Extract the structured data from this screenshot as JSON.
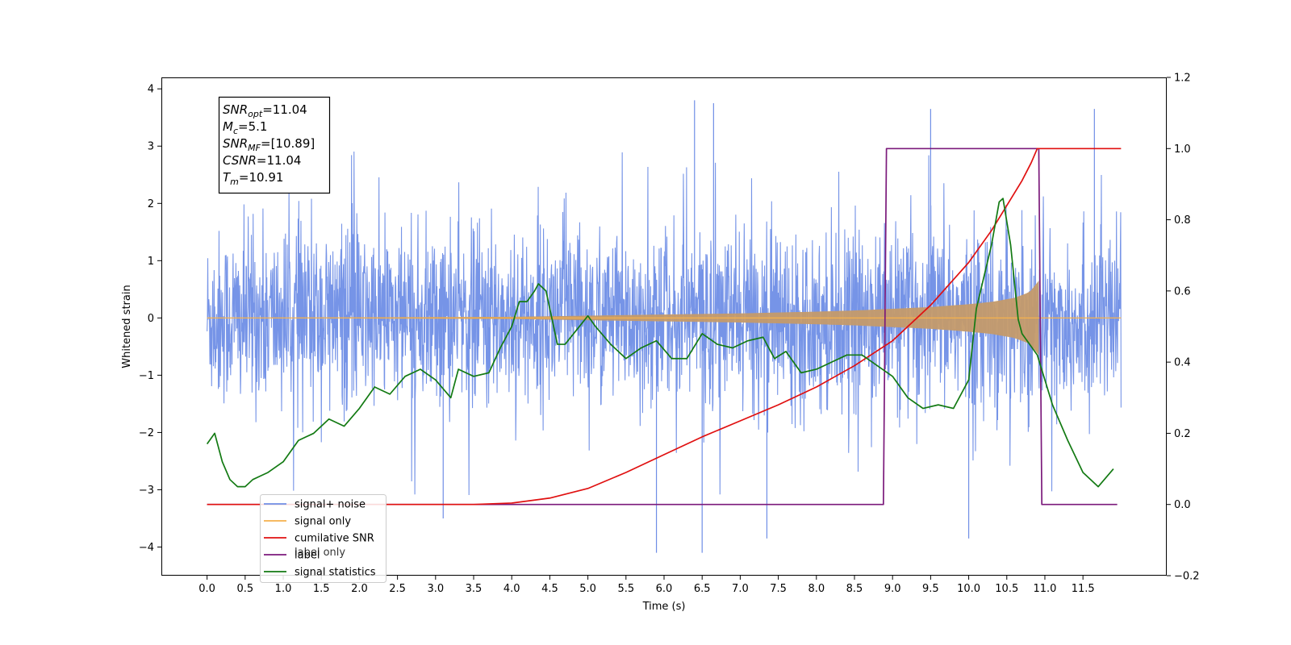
{
  "chart_data": {
    "type": "line",
    "xlabel": "Time (s)",
    "ylabel": "Whitened strain",
    "xlim": [
      -0.6,
      12.6
    ],
    "ylim": [
      -4.5,
      4.2
    ],
    "y2lim": [
      -0.2,
      1.2
    ],
    "x_ticks": [
      0.0,
      0.5,
      1.0,
      1.5,
      2.0,
      2.5,
      3.0,
      3.5,
      4.0,
      4.5,
      5.0,
      5.5,
      6.0,
      6.5,
      7.0,
      7.5,
      8.0,
      8.5,
      9.0,
      9.5,
      10.0,
      10.5,
      11.0,
      11.5
    ],
    "x_tick_labels": [
      "0.0",
      "0.5",
      "1.0",
      "1.5",
      "2.0",
      "2.5",
      "3.0",
      "3.5",
      "4.0",
      "4.5",
      "5.0",
      "5.5",
      "6.0",
      "6.5",
      "7.0",
      "7.5",
      "8.0",
      "8.5",
      "9.0",
      "9.5",
      "10.0",
      "10.5",
      "11.0",
      "11.5"
    ],
    "y_ticks": [
      -4,
      -3,
      -2,
      -1,
      0,
      1,
      2,
      3,
      4
    ],
    "y_tick_labels": [
      "−4",
      "−3",
      "−2",
      "−1",
      "0",
      "1",
      "2",
      "3",
      "4"
    ],
    "y2_ticks": [
      -0.2,
      0.0,
      0.2,
      0.4,
      0.6,
      0.8,
      1.0,
      1.2
    ],
    "y2_tick_labels": [
      "−0.2",
      "0.0",
      "0.2",
      "0.4",
      "0.6",
      "0.8",
      "1.0",
      "1.2"
    ],
    "colors": {
      "noise": "#6f8ee6",
      "signal": "#f5b14c",
      "signal_band": "#c49a6a",
      "csnr": "#e01010",
      "label": "#7b1a7b",
      "stat": "#137a13"
    },
    "noise": {
      "start": 0.0,
      "end": 12.0,
      "sigma": 0.75,
      "outliers": [
        [
          5.9,
          -4.1
        ],
        [
          6.5,
          -4.1
        ],
        [
          10.0,
          -3.85
        ],
        [
          7.35,
          -3.85
        ],
        [
          3.1,
          -3.5
        ],
        [
          6.4,
          3.8
        ],
        [
          6.65,
          3.75
        ],
        [
          11.65,
          3.65
        ],
        [
          9.5,
          3.65
        ]
      ]
    },
    "signal_envelope": {
      "x": [
        0.0,
        2.0,
        4.0,
        5.0,
        6.0,
        7.0,
        8.0,
        8.5,
        9.0,
        9.5,
        10.0,
        10.3,
        10.6,
        10.8,
        10.92
      ],
      "y": [
        0.0,
        0.01,
        0.02,
        0.04,
        0.06,
        0.08,
        0.11,
        0.13,
        0.16,
        0.19,
        0.24,
        0.28,
        0.35,
        0.45,
        0.65
      ]
    },
    "series": [
      {
        "name": "cumilative SNR",
        "axis": "right",
        "x": [
          0.0,
          3.5,
          4.0,
          4.5,
          5.0,
          5.5,
          6.0,
          6.5,
          7.0,
          7.5,
          8.0,
          8.5,
          9.0,
          9.5,
          10.0,
          10.3,
          10.5,
          10.7,
          10.82,
          10.9,
          10.93,
          12.0
        ],
        "values": [
          0.0,
          0.0,
          0.004,
          0.018,
          0.045,
          0.09,
          0.14,
          0.19,
          0.235,
          0.28,
          0.33,
          0.39,
          0.46,
          0.56,
          0.68,
          0.77,
          0.84,
          0.91,
          0.96,
          1.0,
          1.0,
          1.0
        ]
      },
      {
        "name": "label",
        "axis": "right",
        "x": [
          0.0,
          8.88,
          8.92,
          10.92,
          10.96,
          11.95
        ],
        "values": [
          0.0,
          0.0,
          1.0,
          1.0,
          0.0,
          0.0
        ]
      },
      {
        "name": "signal statistics",
        "axis": "right",
        "x": [
          0.0,
          0.1,
          0.2,
          0.3,
          0.4,
          0.5,
          0.6,
          0.7,
          0.8,
          1.0,
          1.2,
          1.4,
          1.6,
          1.8,
          2.0,
          2.1,
          2.2,
          2.4,
          2.6,
          2.8,
          3.0,
          3.2,
          3.3,
          3.5,
          3.7,
          3.85,
          4.0,
          4.1,
          4.2,
          4.3,
          4.35,
          4.45,
          4.6,
          4.7,
          4.85,
          5.0,
          5.1,
          5.3,
          5.5,
          5.7,
          5.9,
          6.1,
          6.3,
          6.5,
          6.7,
          6.9,
          7.1,
          7.3,
          7.45,
          7.6,
          7.8,
          8.0,
          8.2,
          8.4,
          8.6,
          8.8,
          9.0,
          9.2,
          9.4,
          9.6,
          9.8,
          10.0,
          10.1,
          10.2,
          10.3,
          10.4,
          10.45,
          10.55,
          10.65,
          10.7,
          10.9,
          11.1,
          11.3,
          11.5,
          11.7,
          11.9
        ],
        "values": [
          0.17,
          0.2,
          0.12,
          0.07,
          0.05,
          0.05,
          0.07,
          0.08,
          0.09,
          0.12,
          0.18,
          0.2,
          0.24,
          0.22,
          0.27,
          0.3,
          0.33,
          0.31,
          0.36,
          0.38,
          0.35,
          0.3,
          0.38,
          0.36,
          0.37,
          0.44,
          0.5,
          0.57,
          0.57,
          0.6,
          0.62,
          0.6,
          0.45,
          0.45,
          0.49,
          0.53,
          0.5,
          0.45,
          0.41,
          0.44,
          0.46,
          0.41,
          0.41,
          0.48,
          0.45,
          0.44,
          0.46,
          0.47,
          0.41,
          0.43,
          0.37,
          0.38,
          0.4,
          0.42,
          0.42,
          0.39,
          0.36,
          0.3,
          0.27,
          0.28,
          0.27,
          0.35,
          0.55,
          0.64,
          0.73,
          0.85,
          0.86,
          0.73,
          0.52,
          0.48,
          0.42,
          0.28,
          0.18,
          0.09,
          0.05,
          0.1
        ]
      }
    ],
    "legend": {
      "placement": "lower-left",
      "entries": [
        {
          "label": "signal+ noise",
          "color": "#6f8ee6"
        },
        {
          "label": "signal only",
          "color": "#f5b14c"
        },
        {
          "label": "cumilative SNR",
          "color": "#e01010"
        },
        {
          "label": "label",
          "color": "#7b1a7b"
        },
        {
          "label": "signal statistics",
          "color": "#137a13"
        }
      ],
      "ghost_text": "label only"
    },
    "info_box": [
      {
        "name": "SNR",
        "sub": "opt",
        "value": "=11.04"
      },
      {
        "name": "M",
        "sub": "c",
        "value": "=5.1"
      },
      {
        "name": "SNR",
        "sub": "MF",
        "value": "=[10.89]"
      },
      {
        "name": "CSNR",
        "sub": "",
        "value": "=11.04"
      },
      {
        "name": "T",
        "sub": "m",
        "value": "=10.91"
      }
    ]
  }
}
